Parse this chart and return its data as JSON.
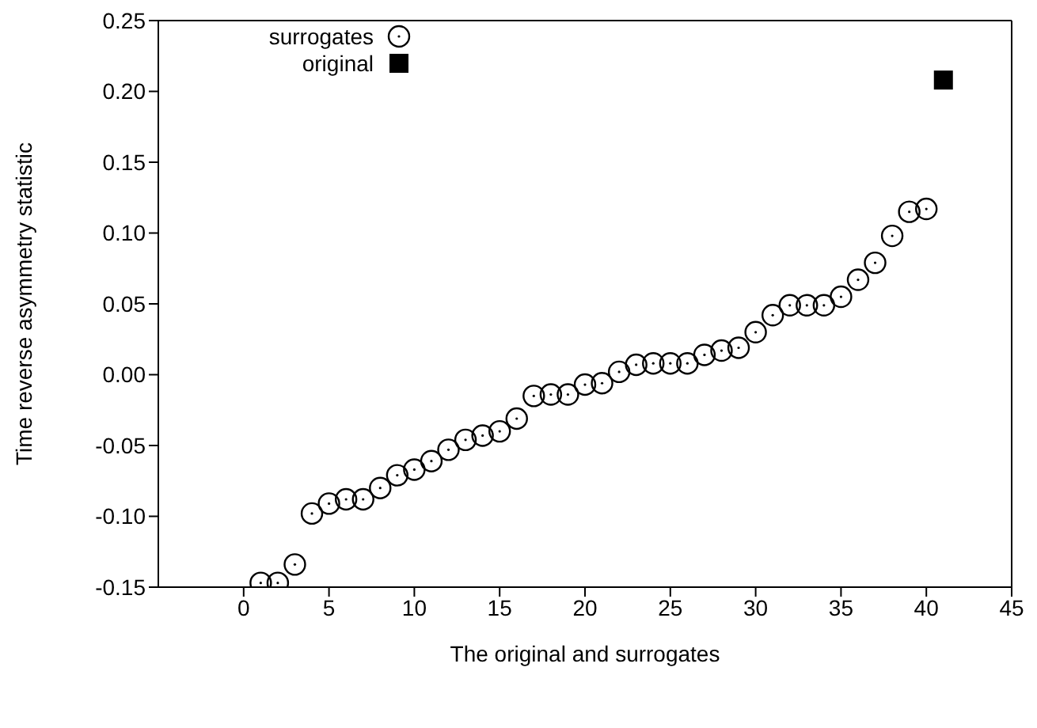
{
  "chart_data": {
    "type": "scatter",
    "xlabel": "The original and surrogates",
    "ylabel": "Time reverse asymmetry statistic",
    "xlim": [
      -5,
      45
    ],
    "xticks": [
      0,
      5,
      10,
      15,
      20,
      25,
      30,
      35,
      40,
      45
    ],
    "ylim": [
      -0.15,
      0.25
    ],
    "yticks": [
      {
        "value": -0.15,
        "label": "-0.15"
      },
      {
        "value": -0.1,
        "label": "-0.10"
      },
      {
        "value": -0.05,
        "label": "-0.05"
      },
      {
        "value": 0,
        "label": "0.00"
      },
      {
        "value": 0.05,
        "label": "0.05"
      },
      {
        "value": 0.1,
        "label": "0.10"
      },
      {
        "value": 0.15,
        "label": "0.15"
      },
      {
        "value": 0.2,
        "label": "0.20"
      },
      {
        "value": 0.25,
        "label": "0.25"
      }
    ],
    "legend": "top left",
    "series": [
      {
        "name": "surrogates",
        "color": "#000000",
        "marker": "circle",
        "x": [
          1,
          2,
          3,
          4,
          5,
          6,
          7,
          8,
          9,
          10,
          11,
          12,
          13,
          14,
          15,
          16,
          17,
          18,
          19,
          20,
          21,
          22,
          23,
          24,
          25,
          26,
          27,
          28,
          29,
          30,
          31,
          32,
          33,
          34,
          35,
          36,
          37,
          38,
          39,
          40
        ],
        "values": [
          -0.147,
          -0.147,
          -0.134,
          -0.098,
          -0.091,
          -0.088,
          -0.088,
          -0.08,
          -0.071,
          -0.067,
          -0.061,
          -0.053,
          -0.046,
          -0.043,
          -0.04,
          -0.031,
          -0.015,
          -0.014,
          -0.014,
          -0.007,
          -0.006,
          0.002,
          0.007,
          0.008,
          0.008,
          0.008,
          0.014,
          0.017,
          0.019,
          0.03,
          0.042,
          0.049,
          0.049,
          0.049,
          0.055,
          0.067,
          0.079,
          0.098,
          0.115,
          0.117
        ]
      },
      {
        "name": "original",
        "color": "#000000",
        "marker": "square",
        "x": [
          41
        ],
        "values": [
          0.208
        ]
      }
    ]
  }
}
